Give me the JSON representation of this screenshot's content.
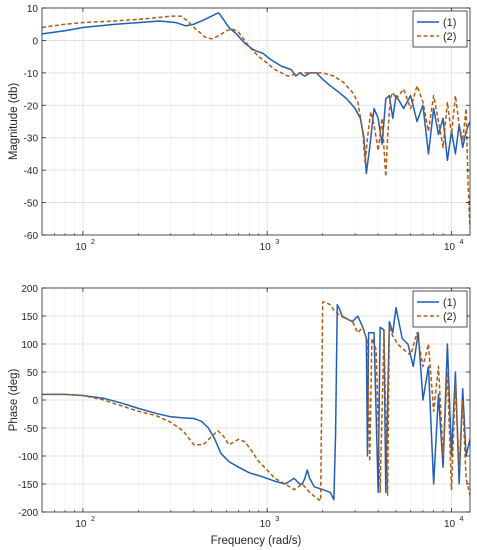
{
  "colors": {
    "series1": "#1f5fb5",
    "series2": "#b35a10",
    "axis": "#262626",
    "grid": "#dcdcdc",
    "grid_minor": "#efefef",
    "background": "#ffffff"
  },
  "chart_data": [
    {
      "type": "line",
      "ylabel": "Magnitude (db)",
      "xlabel": "",
      "xscale": "log",
      "xlim": [
        60,
        12600
      ],
      "ylim": [
        -60,
        10
      ],
      "grid": true,
      "legend": "top-right",
      "xticks": [
        100,
        1000,
        10000
      ],
      "xtick_labels": [
        "10",
        "10",
        "10"
      ],
      "xtick_exponents": [
        "2",
        "3",
        "4"
      ],
      "yticks": [
        10,
        0,
        -10,
        -20,
        -30,
        -40,
        -50,
        -60
      ],
      "ytick_labels": [
        "10",
        "0",
        "-10",
        "-20",
        "-30",
        "-40",
        "-50",
        "-60"
      ],
      "series": [
        {
          "name": "(1)",
          "style": "solid",
          "x": [
            60,
            80,
            100,
            150,
            200,
            260,
            320,
            360,
            400,
            440,
            480,
            520,
            545,
            570,
            620,
            680,
            760,
            850,
            950,
            1050,
            1200,
            1350,
            1430,
            1500,
            1600,
            1700,
            1850,
            2000,
            2200,
            2450,
            2700,
            3000,
            3200,
            3350,
            3450,
            3600,
            3800,
            4000,
            4200,
            4400,
            4600,
            4800,
            5000,
            5500,
            6000,
            6500,
            7000,
            7500,
            8000,
            8500,
            9000,
            9500,
            10000,
            10500,
            11000,
            11500,
            12000,
            12600
          ],
          "values": [
            2,
            3,
            4,
            5,
            5.5,
            6,
            5.5,
            4.5,
            5,
            6,
            7,
            8,
            8.5,
            7,
            4,
            2,
            -1,
            -3,
            -4,
            -6,
            -8,
            -9,
            -11,
            -10,
            -11,
            -10,
            -10,
            -12,
            -14,
            -16,
            -18,
            -21,
            -24,
            -30,
            -41,
            -33,
            -21,
            -24,
            -32,
            -18,
            -17,
            -24,
            -17,
            -21,
            -17,
            -25,
            -20,
            -35,
            -21,
            -29,
            -24,
            -37,
            -28,
            -35,
            -26,
            -33,
            -28,
            -25
          ]
        },
        {
          "name": "(2)",
          "style": "dashed",
          "x": [
            60,
            80,
            100,
            150,
            200,
            250,
            300,
            340,
            370,
            400,
            430,
            460,
            500,
            550,
            600,
            650,
            700,
            800,
            900,
            1000,
            1100,
            1300,
            1500,
            1700,
            2000,
            2300,
            2600,
            2900,
            3100,
            3300,
            3400,
            3500,
            3650,
            3800,
            4000,
            4200,
            4400,
            4500,
            4650,
            4800,
            5000,
            5500,
            6000,
            6500,
            7000,
            7500,
            8000,
            8500,
            9000,
            9500,
            10000,
            10500,
            11000,
            11500,
            12000,
            12300,
            12600
          ],
          "values": [
            4,
            5,
            5.5,
            6,
            6.5,
            7,
            7.5,
            7.5,
            6,
            4,
            2.5,
            1,
            0.5,
            1.5,
            3,
            3.5,
            2.5,
            -2,
            -5,
            -7,
            -9,
            -11,
            -10,
            -10,
            -10,
            -11,
            -13,
            -16,
            -19,
            -28,
            -38,
            -30,
            -22,
            -26,
            -34,
            -24,
            -42,
            -30,
            -18,
            -16,
            -18,
            -15,
            -21,
            -14,
            -19,
            -28,
            -17,
            -25,
            -33,
            -19,
            -29,
            -17,
            -26,
            -31,
            -21,
            -44,
            -58
          ]
        }
      ]
    },
    {
      "type": "line",
      "ylabel": "Phase (deg)",
      "xlabel": "Frequency (rad/s)",
      "xscale": "log",
      "xlim": [
        60,
        12600
      ],
      "ylim": [
        -200,
        200
      ],
      "grid": true,
      "legend": "top-right",
      "xticks": [
        100,
        1000,
        10000
      ],
      "xtick_labels": [
        "10",
        "10",
        "10"
      ],
      "xtick_exponents": [
        "2",
        "3",
        "4"
      ],
      "yticks": [
        200,
        150,
        100,
        50,
        0,
        -50,
        -100,
        -150,
        -200
      ],
      "ytick_labels": [
        "200",
        "150",
        "100",
        "50",
        "0",
        "-50",
        "-100",
        "-150",
        "-200"
      ],
      "series": [
        {
          "name": "(1)",
          "style": "solid",
          "x": [
            60,
            80,
            100,
            130,
            160,
            200,
            250,
            300,
            350,
            400,
            440,
            480,
            520,
            560,
            620,
            700,
            800,
            900,
            1000,
            1100,
            1250,
            1400,
            1500,
            1550,
            1600,
            1650,
            1700,
            1800,
            2000,
            2200,
            2300,
            2350,
            2400,
            2450,
            2550,
            2700,
            2900,
            3100,
            3300,
            3450,
            3500,
            3550,
            3800,
            4000,
            4100,
            4300,
            4400,
            4600,
            4800,
            5000,
            5400,
            5800,
            6200,
            6600,
            7000,
            7500,
            8000,
            8500,
            9000,
            9500,
            10000,
            10500,
            11000,
            11500,
            12000,
            12600
          ],
          "values": [
            10,
            10,
            8,
            3,
            -5,
            -15,
            -24,
            -30,
            -32,
            -33,
            -38,
            -50,
            -70,
            -95,
            -110,
            -120,
            -130,
            -135,
            -140,
            -145,
            -150,
            -140,
            -150,
            -150,
            -140,
            -125,
            -140,
            -155,
            -160,
            -165,
            -178,
            -60,
            170,
            165,
            150,
            145,
            140,
            150,
            130,
            110,
            -100,
            120,
            120,
            -165,
            130,
            125,
            -165,
            140,
            120,
            165,
            110,
            100,
            60,
            120,
            0,
            60,
            -150,
            10,
            -120,
            100,
            -100,
            50,
            -150,
            20,
            -100,
            -70
          ]
        },
        {
          "name": "(2)",
          "style": "dashed",
          "x": [
            60,
            80,
            100,
            130,
            160,
            200,
            250,
            300,
            350,
            400,
            450,
            500,
            540,
            580,
            620,
            660,
            700,
            760,
            820,
            900,
            1000,
            1100,
            1250,
            1400,
            1550,
            1700,
            1850,
            1950,
            2000,
            2050,
            2200,
            2300,
            2500,
            2700,
            2900,
            3100,
            3300,
            3500,
            3600,
            3700,
            3900,
            4100,
            4300,
            4500,
            4600,
            4700,
            4900,
            5100,
            5500,
            6000,
            6500,
            7000,
            7500,
            8000,
            8500,
            9000,
            9500,
            10000,
            10500,
            11000,
            11500,
            12000,
            12600
          ],
          "values": [
            10,
            10,
            8,
            0,
            -10,
            -20,
            -28,
            -40,
            -55,
            -80,
            -80,
            -65,
            -55,
            -65,
            -80,
            -75,
            -70,
            -75,
            -90,
            -110,
            -125,
            -140,
            -150,
            -160,
            -150,
            -165,
            -175,
            -180,
            175,
            175,
            170,
            160,
            150,
            145,
            140,
            120,
            130,
            105,
            -110,
            110,
            90,
            -165,
            120,
            -170,
            130,
            120,
            110,
            100,
            90,
            80,
            120,
            60,
            100,
            -20,
            60,
            -100,
            50,
            -160,
            30,
            -120,
            0,
            -140,
            -170
          ]
        }
      ]
    }
  ]
}
